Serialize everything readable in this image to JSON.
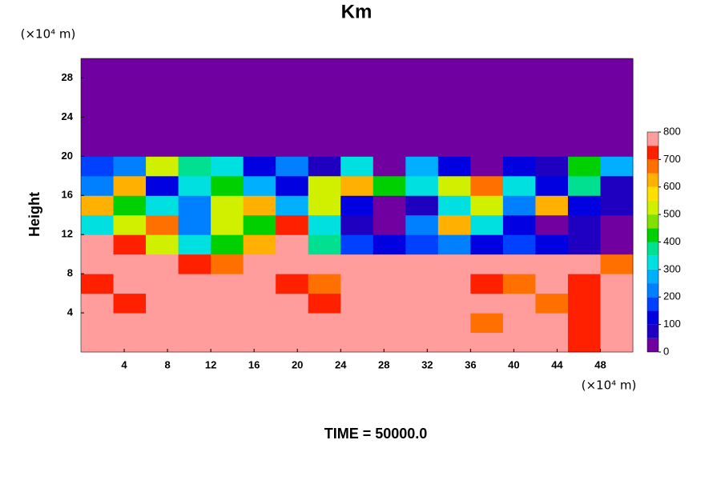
{
  "chart_data": {
    "type": "contour",
    "title": "Km",
    "ylabel": "Height",
    "x_unit": "(×10⁴ m)",
    "y_unit": "(×10⁴ m)",
    "footer": "TIME = 50000.0",
    "xlim": [
      0,
      51
    ],
    "ylim": [
      0,
      30
    ],
    "xticks": [
      4,
      8,
      12,
      16,
      20,
      24,
      28,
      32,
      36,
      40,
      44,
      48
    ],
    "yticks": [
      4,
      8,
      12,
      16,
      20,
      24,
      28
    ],
    "x": [
      1.5,
      4.5,
      7.5,
      10.5,
      13.5,
      16.5,
      19.5,
      22.5,
      25.5,
      28.5,
      31.5,
      34.5,
      37.5,
      40.5,
      43.5,
      46.5,
      49.5
    ],
    "y": [
      1,
      3,
      5,
      7,
      9,
      11,
      13,
      15,
      17,
      19,
      21,
      23,
      25,
      27,
      29
    ],
    "z": [
      [
        800,
        800,
        800,
        800,
        800,
        800,
        800,
        800,
        800,
        800,
        800,
        800,
        800,
        800,
        800,
        700,
        800
      ],
      [
        800,
        800,
        800,
        800,
        800,
        800,
        800,
        800,
        800,
        800,
        800,
        800,
        650,
        800,
        800,
        700,
        750
      ],
      [
        800,
        700,
        800,
        800,
        800,
        800,
        800,
        700,
        800,
        800,
        800,
        800,
        800,
        800,
        650,
        700,
        800
      ],
      [
        700,
        800,
        800,
        800,
        800,
        800,
        700,
        650,
        800,
        800,
        750,
        800,
        700,
        650,
        800,
        700,
        750
      ],
      [
        750,
        800,
        800,
        700,
        650,
        800,
        800,
        750,
        800,
        750,
        800,
        800,
        800,
        800,
        750,
        800,
        650
      ],
      [
        800,
        700,
        500,
        300,
        400,
        600,
        800,
        350,
        150,
        100,
        150,
        200,
        100,
        150,
        100,
        50,
        0
      ],
      [
        300,
        500,
        650,
        200,
        500,
        400,
        700,
        300,
        50,
        0,
        200,
        600,
        300,
        100,
        0,
        50,
        0
      ],
      [
        600,
        400,
        300,
        200,
        500,
        600,
        250,
        500,
        100,
        0,
        50,
        300,
        500,
        200,
        600,
        100,
        50
      ],
      [
        200,
        600,
        100,
        300,
        400,
        250,
        100,
        500,
        600,
        400,
        300,
        500,
        650,
        300,
        100,
        350,
        50
      ],
      [
        150,
        200,
        500,
        350,
        300,
        100,
        200,
        50,
        300,
        0,
        250,
        100,
        0,
        100,
        50,
        400,
        250
      ],
      [
        0,
        0,
        0,
        0,
        0,
        0,
        0,
        0,
        0,
        0,
        0,
        0,
        0,
        0,
        0,
        0,
        0
      ],
      [
        0,
        0,
        0,
        0,
        0,
        0,
        0,
        0,
        0,
        0,
        0,
        0,
        0,
        0,
        0,
        0,
        0
      ],
      [
        0,
        0,
        0,
        0,
        0,
        0,
        0,
        0,
        0,
        0,
        0,
        0,
        0,
        0,
        0,
        0,
        0
      ],
      [
        0,
        0,
        0,
        0,
        0,
        0,
        0,
        0,
        0,
        0,
        0,
        0,
        0,
        0,
        0,
        0,
        0
      ],
      [
        0,
        0,
        0,
        0,
        0,
        0,
        0,
        0,
        0,
        0,
        0,
        0,
        0,
        0,
        0,
        0,
        0
      ]
    ],
    "colorbar": {
      "levels": [
        0,
        50,
        100,
        150,
        200,
        250,
        300,
        350,
        400,
        450,
        500,
        550,
        600,
        650,
        700,
        750,
        800
      ],
      "colors": [
        "#7000a0",
        "#2000c0",
        "#0000e0",
        "#0040ff",
        "#0080ff",
        "#00b0ff",
        "#00e0e0",
        "#00e090",
        "#00d000",
        "#80e000",
        "#d0f000",
        "#ffe000",
        "#ffb000",
        "#ff7000",
        "#ff2000",
        "#ff9c9c"
      ],
      "ticks": [
        0,
        100,
        200,
        300,
        400,
        500,
        600,
        700,
        800
      ]
    }
  }
}
